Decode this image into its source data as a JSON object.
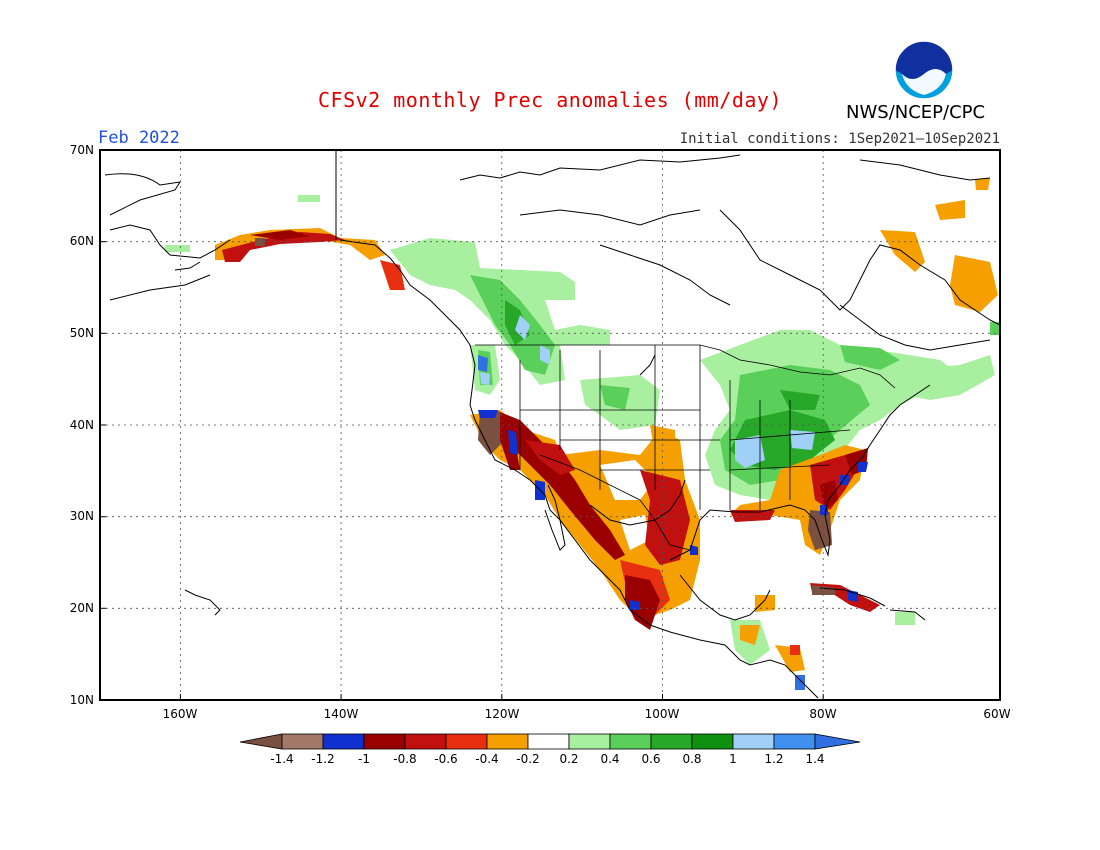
{
  "header": {
    "title": "CFSv2 monthly Prec anomalies (mm/day)",
    "month": "Feb 2022",
    "initial_conditions": "Initial conditions: 1Sep2021–10Sep2021",
    "agency": "NWS/NCEP/CPC",
    "logo_text": "NOAA"
  },
  "axes": {
    "lat_labels": [
      "70N",
      "60N",
      "50N",
      "40N",
      "30N",
      "20N",
      "10N"
    ],
    "lon_labels": [
      "160W",
      "140W",
      "120W",
      "100W",
      "80W",
      "60W"
    ],
    "lat_range": [
      10,
      70
    ],
    "lon_range": [
      -172,
      -60
    ]
  },
  "colorbar": {
    "labels": [
      "-1.4",
      "-1.2",
      "-1",
      "-0.8",
      "-0.6",
      "-0.4",
      "-0.2",
      "0.2",
      "0.4",
      "0.6",
      "0.8",
      "1",
      "1.2",
      "1.4"
    ],
    "colors": [
      "#7a5040",
      "#a37a6a",
      "#1030d0",
      "#9a0000",
      "#c01010",
      "#e83010",
      "#f5a000",
      "#ffffff",
      "#a8f0a0",
      "#5ad05a",
      "#28a828",
      "#109010",
      "#a0d0f8",
      "#4090f0",
      "#3070e0"
    ]
  }
}
